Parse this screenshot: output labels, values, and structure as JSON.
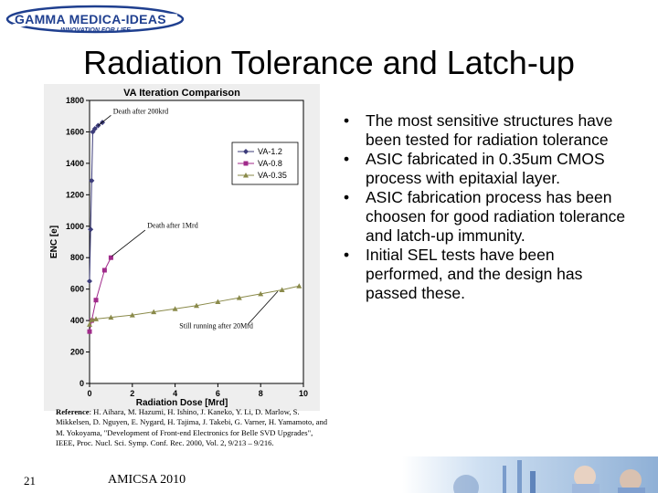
{
  "logo": {
    "name": "GAMMA MEDICA-IDEAS",
    "tagline": "INNOVATION FOR LIFE"
  },
  "slide_title": "Radiation Tolerance and Latch-up",
  "bullets": [
    "The most sensitive structures have been tested for radiation tolerance",
    "ASIC fabricated in 0.35um CMOS process with epitaxial layer.",
    "ASIC fabrication process has been choosen for good radiation tolerance and latch-up immunity.",
    "Initial SEL tests have been performed, and the design has passed these."
  ],
  "reference": {
    "label": "Reference",
    "text": ": H. Aihara, M. Hazumi, H. Ishino, J. Kaneko, Y. Li, D. Marlow, S. Mikkelsen, D. Nguyen, E. Nygard, H. Tajima, J. Takebi, G. Varner, H. Yamamoto, and M. Yokoyama, \"Development of Front-end Electronics for Belle SVD Upgrades\", IEEE, Proc. Nucl. Sci. Symp. Conf. Rec. 2000, Vol. 2, 9/213 – 9/216."
  },
  "slide_number": "21",
  "footer": "AMICSA 2010",
  "chart_data": {
    "type": "line",
    "title": "VA Iteration Comparison",
    "xlabel": "Radiation Dose [Mrd]",
    "ylabel": "ENC [e]",
    "xlim": [
      0,
      10
    ],
    "ylim": [
      0,
      1800
    ],
    "xticks": [
      0,
      2,
      4,
      6,
      8,
      10
    ],
    "yticks": [
      0,
      200,
      400,
      600,
      800,
      1000,
      1200,
      1400,
      1600,
      1800
    ],
    "grid": false,
    "legend_position": "right",
    "series": [
      {
        "name": "VA-1.2",
        "marker": "diamond",
        "color": "#3c3c7a",
        "x": [
          0,
          0.05,
          0.1,
          0.15,
          0.25,
          0.4,
          0.6
        ],
        "y": [
          650,
          980,
          1290,
          1600,
          1620,
          1640,
          1660
        ]
      },
      {
        "name": "VA-0.8",
        "marker": "square",
        "color": "#a02a8a",
        "x": [
          0,
          0.1,
          0.3,
          0.7,
          1.0
        ],
        "y": [
          330,
          400,
          530,
          720,
          800
        ]
      },
      {
        "name": "VA-0.35",
        "marker": "triangle",
        "color": "#8a8a4a",
        "x": [
          0,
          0.1,
          0.3,
          1.0,
          2.0,
          3.0,
          4.0,
          5.0,
          6.0,
          7.0,
          8.0,
          9.0,
          9.8
        ],
        "y": [
          375,
          405,
          410,
          420,
          435,
          455,
          475,
          495,
          520,
          545,
          570,
          595,
          620
        ]
      }
    ],
    "annotations": [
      "Death after 200krd",
      "Death after 1Mrd",
      "Still running after 20Mrd"
    ]
  }
}
